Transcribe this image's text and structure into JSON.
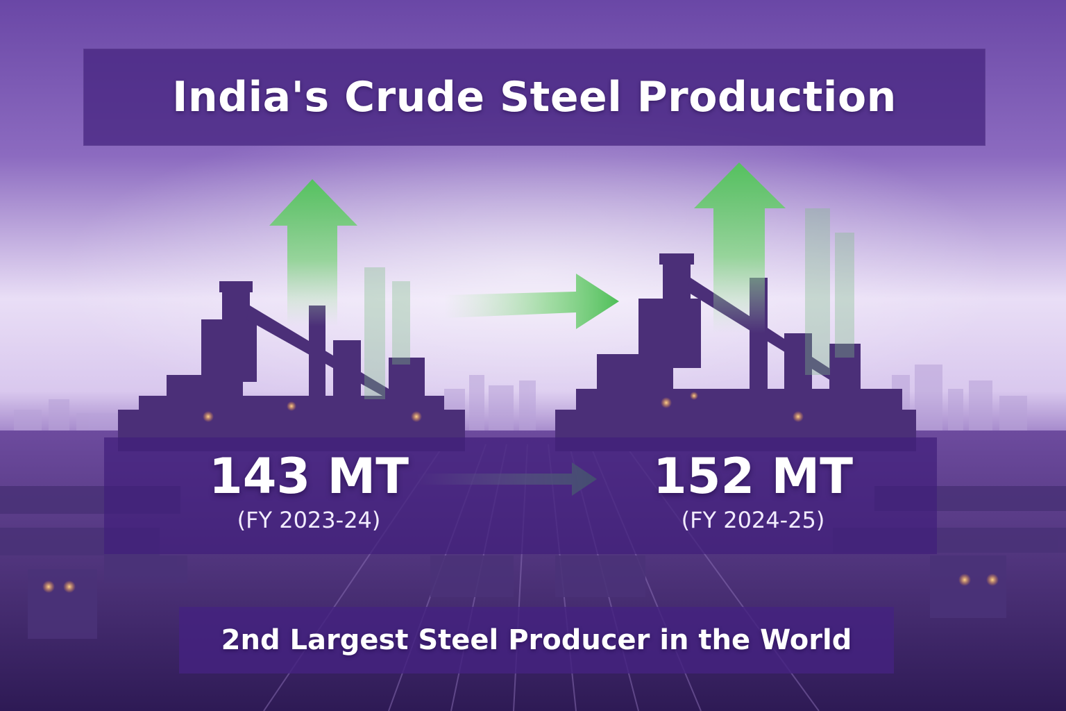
{
  "title": "India's Crude Steel Production",
  "stats": [
    {
      "value": "143 MT",
      "period": "(FY 2023-24)"
    },
    {
      "value": "152 MT",
      "period": "(FY 2024-25)"
    }
  ],
  "tagline": "2nd Largest Steel Producer in the World",
  "icons": [
    "up-arrow-icon",
    "right-arrow-icon"
  ],
  "colors": {
    "band": "#4a2682",
    "accent_green": "#5cc86a",
    "text": "#ffffff",
    "background": "#6b4aa0"
  }
}
